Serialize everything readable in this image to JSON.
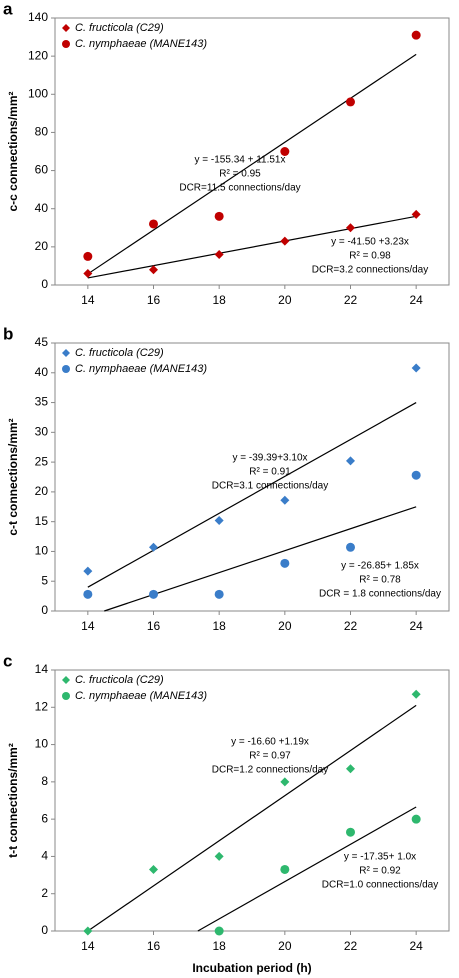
{
  "chart_data": [
    {
      "type": "scatter",
      "panel": "a",
      "ylabel": "c-c  connections/mm²",
      "x": [
        14,
        16,
        18,
        20,
        22,
        24
      ],
      "xlim": [
        13,
        25
      ],
      "xticks": [
        14,
        16,
        18,
        20,
        22,
        24
      ],
      "ylim": [
        0,
        140
      ],
      "yticks": [
        0,
        20,
        40,
        60,
        80,
        100,
        120,
        140
      ],
      "series": [
        {
          "name": "C. fructicola (C29)",
          "color": "#c00000",
          "marker": "diamond",
          "values": [
            6,
            8,
            16,
            23,
            30,
            37
          ]
        },
        {
          "name": "C. nymphaeae (MANE143)",
          "color": "#c00000",
          "marker": "circle",
          "values": [
            15,
            32,
            36,
            70,
            96,
            131
          ]
        }
      ],
      "trendlines": [
        {
          "x": [
            14,
            24
          ],
          "values": [
            5.8,
            120.9
          ],
          "annotation": [
            "y = -155.34 + 11.51x",
            "R² = 0.95",
            "DCR=11.5 connections/day"
          ]
        },
        {
          "x": [
            14,
            24
          ],
          "values": [
            3.7,
            36
          ],
          "annotation": [
            "y = -41.50 +3.23x",
            "R² = 0.98",
            "DCR=3.2 connections/day"
          ]
        }
      ]
    },
    {
      "type": "scatter",
      "panel": "b",
      "ylabel": "c-t connections/mm²",
      "x": [
        14,
        16,
        18,
        20,
        22,
        24
      ],
      "xlim": [
        13,
        25
      ],
      "xticks": [
        14,
        16,
        18,
        20,
        22,
        24
      ],
      "ylim": [
        0,
        45
      ],
      "yticks": [
        0,
        5,
        10,
        15,
        20,
        25,
        30,
        35,
        40,
        45
      ],
      "series": [
        {
          "name": "C. fructicola (C29)",
          "color": "#3a7dc9",
          "marker": "diamond",
          "values": [
            6.7,
            10.7,
            15.2,
            18.6,
            25.2,
            40.8
          ]
        },
        {
          "name": "C. nymphaeae (MANE143)",
          "color": "#3a7dc9",
          "marker": "circle",
          "values": [
            2.8,
            2.8,
            2.8,
            8.0,
            10.7,
            22.8
          ]
        }
      ],
      "trendlines": [
        {
          "x": [
            14,
            24
          ],
          "values": [
            4.0,
            35.0
          ],
          "annotation": [
            "y = -39.39+3.10x",
            "R² = 0.91",
            "DCR=3.1 connections/day"
          ]
        },
        {
          "x": [
            14.5,
            24
          ],
          "values": [
            0,
            17.5
          ],
          "annotation": [
            "y = -26.85+ 1.85x",
            "R² = 0.78",
            "DCR = 1.8 connections/day"
          ]
        }
      ]
    },
    {
      "type": "scatter",
      "panel": "c",
      "ylabel": "t-t  connections/mm²",
      "xlabel": "Incubation period (h)",
      "x": [
        14,
        16,
        18,
        20,
        22,
        24
      ],
      "xlim": [
        13,
        25
      ],
      "xticks": [
        14,
        16,
        18,
        20,
        22,
        24
      ],
      "ylim": [
        0,
        14
      ],
      "yticks": [
        0,
        2,
        4,
        6,
        8,
        10,
        12,
        14
      ],
      "series": [
        {
          "name": "C. fructicola (C29)",
          "color": "#2eb86e",
          "marker": "diamond",
          "values": [
            0,
            3.3,
            4.0,
            8.0,
            8.7,
            12.7
          ]
        },
        {
          "name": "C. nymphaeae (MANE143)",
          "color": "#2eb86e",
          "marker": "circle",
          "values": [
            null,
            null,
            0,
            3.3,
            5.3,
            6.0
          ]
        }
      ],
      "trendlines": [
        {
          "x": [
            14,
            24
          ],
          "values": [
            0,
            12.1
          ],
          "annotation": [
            "y = -16.60 +1.19x",
            "R² = 0.97",
            "DCR=1.2 connections/day"
          ]
        },
        {
          "x": [
            17.35,
            24
          ],
          "values": [
            0,
            6.65
          ],
          "annotation": [
            "y = -17.35+ 1.0x",
            "R² = 0.92",
            "DCR=1.0 connections/day"
          ]
        }
      ]
    }
  ]
}
